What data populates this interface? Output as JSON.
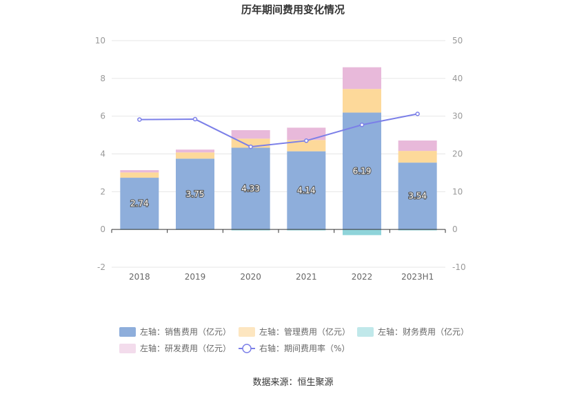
{
  "chart_data": {
    "type": "bar",
    "title": "历年期间费用变化情况",
    "categories": [
      "2018",
      "2019",
      "2020",
      "2021",
      "2022",
      "2023H1"
    ],
    "left_axis": {
      "ylim": [
        -2,
        10
      ],
      "ticks": [
        -2,
        0,
        2,
        4,
        6,
        8,
        10
      ]
    },
    "right_axis": {
      "ylim": [
        -10,
        50
      ],
      "ticks": [
        -10,
        0,
        10,
        20,
        30,
        40,
        50
      ]
    },
    "series": [
      {
        "name": "左轴：销售费用（亿元）",
        "type": "bar",
        "axis": "left",
        "color": "#8eaedb",
        "values": [
          2.74,
          3.75,
          4.33,
          4.14,
          6.19,
          3.54
        ],
        "labels": [
          "2.74",
          "3.75",
          "4.33",
          "4.14",
          "6.19",
          "3.54"
        ]
      },
      {
        "name": "左轴：管理费用（亿元）",
        "type": "bar",
        "axis": "left",
        "color": "#fdd99a",
        "values": [
          0.28,
          0.33,
          0.48,
          0.6,
          1.25,
          0.62
        ]
      },
      {
        "name": "左轴：财务费用（亿元）",
        "type": "bar",
        "axis": "left",
        "color": "#8fd4da",
        "values": [
          -0.02,
          -0.02,
          -0.05,
          -0.05,
          -0.3,
          -0.05
        ]
      },
      {
        "name": "左轴：研发费用（亿元）",
        "type": "bar",
        "axis": "left",
        "color": "#e8b9da",
        "values": [
          0.12,
          0.15,
          0.45,
          0.65,
          1.15,
          0.55
        ]
      },
      {
        "name": "右轴：期间费用率（%）",
        "type": "line",
        "axis": "right",
        "color": "#7b7fe8",
        "values": [
          29.1,
          29.2,
          21.9,
          23.5,
          27.7,
          30.6
        ]
      }
    ],
    "legend": [
      {
        "label": "左轴：销售费用（亿元）",
        "color": "#8eaedb",
        "shape": "rect"
      },
      {
        "label": "左轴：管理费用（亿元）",
        "color": "#fde6c0",
        "shape": "rect"
      },
      {
        "label": "左轴：财务费用（亿元）",
        "color": "#c0e8ea",
        "shape": "rect"
      },
      {
        "label": "左轴：研发费用（亿元）",
        "color": "#f3dcec",
        "shape": "rect"
      },
      {
        "label": "右轴：期间费用率（%）",
        "color": "#7b7fe8",
        "shape": "line"
      }
    ],
    "legend_position": "bottom"
  },
  "source": "数据来源：恒生聚源"
}
